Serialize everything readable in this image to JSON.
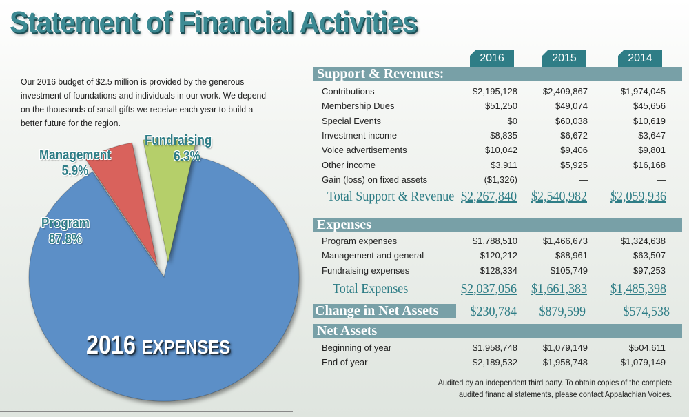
{
  "title": "Statement of Financial Activities",
  "intro": "Our 2016 budget of $2.5 million is provided by the generous investment of foundations and individuals in our work. We depend on the thousands of small gifts we receive each year to build a better future for the region.",
  "pie": {
    "caption_year": "2016",
    "caption_word": "EXPENSES",
    "slices": [
      {
        "name": "Program",
        "pct_label": "87.8%",
        "value": 87.8,
        "color": "#5b8fc7"
      },
      {
        "name": "Management",
        "pct_label": "5.9%",
        "value": 5.9,
        "color": "#d9625c"
      },
      {
        "name": "Fundraising",
        "pct_label": "6.3%",
        "value": 6.3,
        "color": "#b5cf6b"
      }
    ]
  },
  "years": [
    "2016",
    "2015",
    "2014"
  ],
  "support": {
    "heading": "Support & Revenues:",
    "rows": [
      {
        "label": "Contributions",
        "v": [
          "$2,195,128",
          "$2,409,867",
          "$1,974,045"
        ]
      },
      {
        "label": "Membership Dues",
        "v": [
          "$51,250",
          "$49,074",
          "$45,656"
        ]
      },
      {
        "label": "Special Events",
        "v": [
          "$0",
          "$60,038",
          "$10,619"
        ]
      },
      {
        "label": "Investment income",
        "v": [
          "$8,835",
          "$6,672",
          "$3,647"
        ]
      },
      {
        "label": "Voice advertisements",
        "v": [
          "$10,042",
          "$9,406",
          "$9,801"
        ]
      },
      {
        "label": "Other income",
        "v": [
          "$3,911",
          "$5,925",
          "$16,168"
        ]
      },
      {
        "label": "Gain (loss) on fixed assets",
        "v": [
          "($1,326)",
          "—",
          "—"
        ]
      }
    ],
    "total_label": "Total Support & Revenue",
    "total": [
      "$2,267,840",
      "$2,540,982",
      "$2,059,936"
    ]
  },
  "expenses": {
    "heading": "Expenses",
    "rows": [
      {
        "label": "Program expenses",
        "v": [
          "$1,788,510",
          "$1,466,673",
          "$1,324,638"
        ]
      },
      {
        "label": "Management and general",
        "v": [
          "$120,212",
          "$88,961",
          "$63,507"
        ]
      },
      {
        "label": "Fundraising expenses",
        "v": [
          "$128,334",
          "$105,749",
          "$97,253"
        ]
      }
    ],
    "total_label": "Total Expenses",
    "total": [
      "$2,037,056",
      "$1,661,383",
      "$1,485,398"
    ]
  },
  "change": {
    "label": "Change in Net Assets",
    "v": [
      "$230,784",
      "$879,599",
      "$574,538"
    ]
  },
  "net": {
    "heading": "Net Assets",
    "rows": [
      {
        "label": "Beginning of year",
        "v": [
          "$1,958,748",
          "$1,079,149",
          "$504,611"
        ]
      },
      {
        "label": "End of year",
        "v": [
          "$2,189,532",
          "$1,958,748",
          "$1,079,149"
        ]
      }
    ]
  },
  "note": [
    "Audited by an independent third party. To obtain copies of the complete",
    "audited financial statements, please contact Appalachian Voices."
  ]
}
